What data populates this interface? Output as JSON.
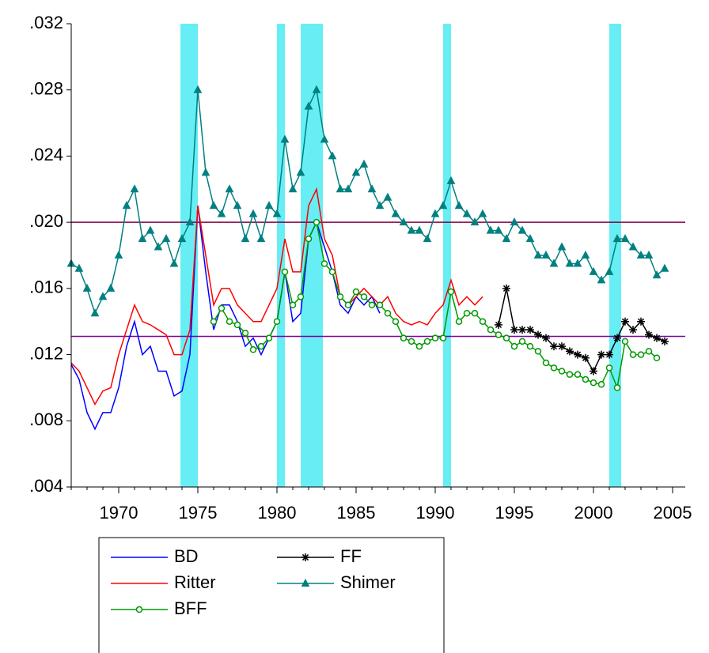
{
  "chart_data": {
    "type": "line",
    "x": [
      1967,
      1967.5,
      1968,
      1968.5,
      1969,
      1969.5,
      1970,
      1970.5,
      1971,
      1971.5,
      1972,
      1972.5,
      1973,
      1973.5,
      1974,
      1974.5,
      1975,
      1975.5,
      1976,
      1976.5,
      1977,
      1977.5,
      1978,
      1978.5,
      1979,
      1979.5,
      1980,
      1980.5,
      1981,
      1981.5,
      1982,
      1982.5,
      1983,
      1983.5,
      1984,
      1984.5,
      1985,
      1985.5,
      1986,
      1986.5,
      1987,
      1987.5,
      1988,
      1988.5,
      1989,
      1989.5,
      1990,
      1990.5,
      1991,
      1991.5,
      1992,
      1992.5,
      1993,
      1993.5,
      1994,
      1994.5,
      1995,
      1995.5,
      1996,
      1996.5,
      1997,
      1997.5,
      1998,
      1998.5,
      1999,
      1999.5,
      2000,
      2000.5,
      2001,
      2001.5,
      2002,
      2002.5,
      2003,
      2003.5,
      2004,
      2004.5
    ],
    "series": [
      {
        "name": "BD",
        "color": "#0000ff",
        "marker": "none",
        "values": [
          0.0114,
          0.0105,
          0.0085,
          0.0075,
          0.0085,
          0.0085,
          0.01,
          0.0125,
          0.014,
          0.012,
          0.0125,
          0.011,
          0.011,
          0.0095,
          0.0098,
          0.012,
          0.021,
          0.017,
          0.0135,
          0.015,
          0.015,
          0.014,
          0.0125,
          0.013,
          0.012,
          0.013,
          0.014,
          0.017,
          0.014,
          0.0145,
          0.019,
          0.02,
          0.0185,
          0.017,
          0.015,
          0.0145,
          0.0155,
          0.015,
          0.0155,
          0.0145,
          null,
          null,
          null,
          null,
          null,
          null,
          null,
          null,
          null,
          null,
          null,
          null,
          null,
          null,
          null,
          null,
          null,
          null,
          null,
          null,
          null,
          null,
          null,
          null,
          null,
          null,
          null,
          null,
          null,
          null,
          null,
          null,
          null,
          null,
          null,
          null
        ]
      },
      {
        "name": "FF",
        "color": "#000000",
        "marker": "asterisk",
        "values": [
          null,
          null,
          null,
          null,
          null,
          null,
          null,
          null,
          null,
          null,
          null,
          null,
          null,
          null,
          null,
          null,
          null,
          null,
          null,
          null,
          null,
          null,
          null,
          null,
          null,
          null,
          null,
          null,
          null,
          null,
          null,
          null,
          null,
          null,
          null,
          null,
          null,
          null,
          null,
          null,
          null,
          null,
          null,
          null,
          null,
          null,
          null,
          null,
          null,
          null,
          null,
          null,
          null,
          null,
          0.0138,
          0.016,
          0.0135,
          0.0135,
          0.0135,
          0.0132,
          0.013,
          0.0125,
          0.0125,
          0.0122,
          0.012,
          0.0118,
          0.011,
          0.012,
          0.012,
          0.013,
          0.014,
          0.0135,
          0.014,
          0.0132,
          0.013,
          0.0128
        ]
      },
      {
        "name": "Ritter",
        "color": "#ff0000",
        "marker": "none",
        "values": [
          0.0115,
          0.011,
          0.01,
          0.009,
          0.0098,
          0.01,
          0.012,
          0.0135,
          0.015,
          0.014,
          0.0138,
          0.0135,
          0.0132,
          0.012,
          0.012,
          0.0135,
          0.021,
          0.018,
          0.015,
          0.016,
          0.016,
          0.015,
          0.0145,
          0.014,
          0.014,
          0.015,
          0.016,
          0.019,
          0.017,
          0.017,
          0.021,
          0.022,
          0.019,
          0.018,
          0.0155,
          0.015,
          0.0155,
          0.016,
          0.0155,
          0.015,
          0.0155,
          0.0145,
          0.014,
          0.0138,
          0.014,
          0.0138,
          0.0145,
          0.015,
          0.0165,
          0.015,
          0.0155,
          0.015,
          0.0155,
          null,
          null,
          null,
          null,
          null,
          null,
          null,
          null,
          null,
          null,
          null,
          null,
          null,
          null,
          null,
          null,
          null,
          null,
          null,
          null,
          null,
          null,
          null
        ]
      },
      {
        "name": "Shimer",
        "color": "#008080",
        "marker": "triangle",
        "values": [
          0.0175,
          0.0172,
          0.016,
          0.0145,
          0.0155,
          0.016,
          0.018,
          0.021,
          0.022,
          0.019,
          0.0195,
          0.0185,
          0.019,
          0.0175,
          0.019,
          0.02,
          0.028,
          0.023,
          0.021,
          0.0205,
          0.022,
          0.021,
          0.019,
          0.0205,
          0.019,
          0.021,
          0.0205,
          0.025,
          0.022,
          0.023,
          0.027,
          0.028,
          0.025,
          0.024,
          0.022,
          0.022,
          0.023,
          0.0235,
          0.022,
          0.021,
          0.0215,
          0.0205,
          0.02,
          0.0195,
          0.0195,
          0.019,
          0.0205,
          0.021,
          0.0225,
          0.021,
          0.0205,
          0.02,
          0.0205,
          0.0195,
          0.0195,
          0.019,
          0.02,
          0.0195,
          0.019,
          0.018,
          0.018,
          0.0175,
          0.0185,
          0.0175,
          0.0175,
          0.018,
          0.017,
          0.0165,
          0.017,
          0.019,
          0.019,
          0.0185,
          0.018,
          0.018,
          0.0168,
          0.0172
        ]
      },
      {
        "name": "BFF",
        "color": "#009900",
        "marker": "circle",
        "values": [
          null,
          null,
          null,
          null,
          null,
          null,
          null,
          null,
          null,
          null,
          null,
          null,
          null,
          null,
          null,
          null,
          null,
          null,
          0.014,
          0.0148,
          0.014,
          0.0138,
          0.0133,
          0.0123,
          0.0125,
          0.013,
          0.014,
          0.017,
          0.015,
          0.0155,
          0.019,
          0.02,
          0.0175,
          0.017,
          0.0155,
          0.015,
          0.0158,
          0.0155,
          0.015,
          0.015,
          0.0145,
          0.014,
          0.013,
          0.0128,
          0.0125,
          0.0128,
          0.013,
          0.013,
          0.0158,
          0.014,
          0.0145,
          0.0145,
          0.014,
          0.0135,
          0.0132,
          0.013,
          0.0125,
          0.0128,
          0.0125,
          0.0122,
          0.0115,
          0.0112,
          0.011,
          0.0108,
          0.0108,
          0.0105,
          0.0103,
          0.0102,
          0.0112,
          0.01,
          0.0128,
          0.012,
          0.012,
          0.0122,
          0.0118,
          null
        ]
      }
    ],
    "xlim": [
      1967,
      2005.8
    ],
    "ylim": [
      0.004,
      0.032
    ],
    "xticks": [
      1970,
      1975,
      1980,
      1985,
      1990,
      1995,
      2000,
      2005
    ],
    "yticks": [
      {
        "value": 0.004,
        "label": ".004"
      },
      {
        "value": 0.008,
        "label": ".008"
      },
      {
        "value": 0.012,
        "label": ".012"
      },
      {
        "value": 0.016,
        "label": ".016"
      },
      {
        "value": 0.02,
        "label": ".020"
      },
      {
        "value": 0.024,
        "label": ".024"
      },
      {
        "value": 0.028,
        "label": ".028"
      },
      {
        "value": 0.032,
        "label": ".032"
      }
    ],
    "shaded_periods": [
      [
        1973.9,
        1975.0
      ],
      [
        1980.0,
        1980.5
      ],
      [
        1981.5,
        1982.9
      ],
      [
        1990.5,
        1991.0
      ],
      [
        2001.0,
        2001.75
      ]
    ],
    "shade_color": "#66eef4",
    "hlines": [
      {
        "value": 0.02,
        "color": "#800040"
      },
      {
        "value": 0.0131,
        "color": "#8000a0"
      }
    ]
  }
}
